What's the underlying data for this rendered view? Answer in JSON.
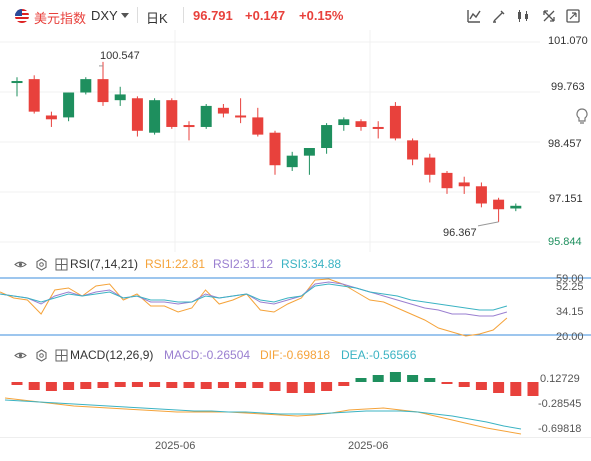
{
  "header": {
    "name": "美元指数",
    "code": "DXY",
    "period": "日K",
    "price": "96.791",
    "change": "+0.147",
    "change_pct": "+0.15%"
  },
  "toolbar": {
    "icons": [
      "indicator-icon",
      "draw-icon",
      "compare-icon",
      "fullscreen-icon",
      "restore-icon"
    ]
  },
  "main_chart": {
    "y_ticks": [
      "101.070",
      "99.763",
      "98.457",
      "97.151",
      "95.844"
    ],
    "high_label": "100.547",
    "low_label": "96.367",
    "side_icon": "lightbulb-icon"
  },
  "rsi": {
    "title": "RSI(7,14,21)",
    "rsi1": "RSI1:22.81",
    "rsi2": "RSI2:31.12",
    "rsi3": "RSI3:34.88",
    "y_ticks": [
      "59.00",
      "52.25",
      "34.15",
      "20.00"
    ]
  },
  "macd": {
    "title": "MACD(12,26,9)",
    "macd": "MACD:-0.26504",
    "dif": "DIF:-0.69818",
    "dea": "DEA:-0.56566",
    "y_ticks": [
      "0.12729",
      "-0.28545",
      "-0.69818"
    ]
  },
  "x_axis": [
    "2025-06",
    "2025-06"
  ],
  "colors": {
    "up": "#e8413c",
    "down": "#1e8f5e",
    "rsi1": "#f5a33a",
    "rsi2": "#9a7fd0",
    "rsi3": "#3bb3c3",
    "dif": "#f5a33a",
    "dea": "#3bb3c3",
    "macd_label": "#9a7fd0",
    "ref_line": "#3b8ede"
  },
  "chart_data": {
    "type": "candlestick",
    "ylim": [
      95.844,
      101.07
    ],
    "candles": [
      {
        "o": 100.05,
        "h": 100.15,
        "l": 99.65,
        "c": 100.05
      },
      {
        "o": 100.1,
        "h": 100.2,
        "l": 99.2,
        "c": 99.25
      },
      {
        "o": 99.15,
        "h": 99.25,
        "l": 98.85,
        "c": 99.05
      },
      {
        "o": 99.1,
        "h": 99.75,
        "l": 99.0,
        "c": 99.75
      },
      {
        "o": 99.75,
        "h": 100.15,
        "l": 99.7,
        "c": 100.1
      },
      {
        "o": 100.1,
        "h": 100.55,
        "l": 99.4,
        "c": 99.5
      },
      {
        "o": 99.55,
        "h": 99.9,
        "l": 99.4,
        "c": 99.7
      },
      {
        "o": 99.6,
        "h": 99.65,
        "l": 98.6,
        "c": 98.75
      },
      {
        "o": 98.7,
        "h": 99.6,
        "l": 98.65,
        "c": 99.55
      },
      {
        "o": 99.55,
        "h": 99.6,
        "l": 98.8,
        "c": 98.85
      },
      {
        "o": 98.9,
        "h": 99.0,
        "l": 98.5,
        "c": 98.85
      },
      {
        "o": 98.85,
        "h": 99.45,
        "l": 98.8,
        "c": 99.4
      },
      {
        "o": 99.35,
        "h": 99.45,
        "l": 99.1,
        "c": 99.2
      },
      {
        "o": 99.15,
        "h": 99.6,
        "l": 98.95,
        "c": 99.1
      },
      {
        "o": 99.1,
        "h": 99.35,
        "l": 98.6,
        "c": 98.65
      },
      {
        "o": 98.7,
        "h": 98.75,
        "l": 97.6,
        "c": 97.85
      },
      {
        "o": 97.8,
        "h": 98.2,
        "l": 97.7,
        "c": 98.1
      },
      {
        "o": 98.1,
        "h": 98.3,
        "l": 97.6,
        "c": 98.3
      },
      {
        "o": 98.3,
        "h": 98.95,
        "l": 98.15,
        "c": 98.9
      },
      {
        "o": 98.9,
        "h": 99.1,
        "l": 98.75,
        "c": 99.05
      },
      {
        "o": 99.0,
        "h": 99.05,
        "l": 98.75,
        "c": 98.85
      },
      {
        "o": 98.85,
        "h": 99.0,
        "l": 98.55,
        "c": 98.8
      },
      {
        "o": 99.4,
        "h": 99.5,
        "l": 98.5,
        "c": 98.55
      },
      {
        "o": 98.5,
        "h": 98.55,
        "l": 97.85,
        "c": 98.0
      },
      {
        "o": 98.05,
        "h": 98.15,
        "l": 97.4,
        "c": 97.6
      },
      {
        "o": 97.65,
        "h": 97.7,
        "l": 97.1,
        "c": 97.25
      },
      {
        "o": 97.4,
        "h": 97.55,
        "l": 97.1,
        "c": 97.3
      },
      {
        "o": 97.3,
        "h": 97.4,
        "l": 96.75,
        "c": 96.85
      },
      {
        "o": 96.95,
        "h": 97.0,
        "l": 96.37,
        "c": 96.7
      },
      {
        "o": 96.72,
        "h": 96.85,
        "l": 96.65,
        "c": 96.79
      }
    ]
  }
}
